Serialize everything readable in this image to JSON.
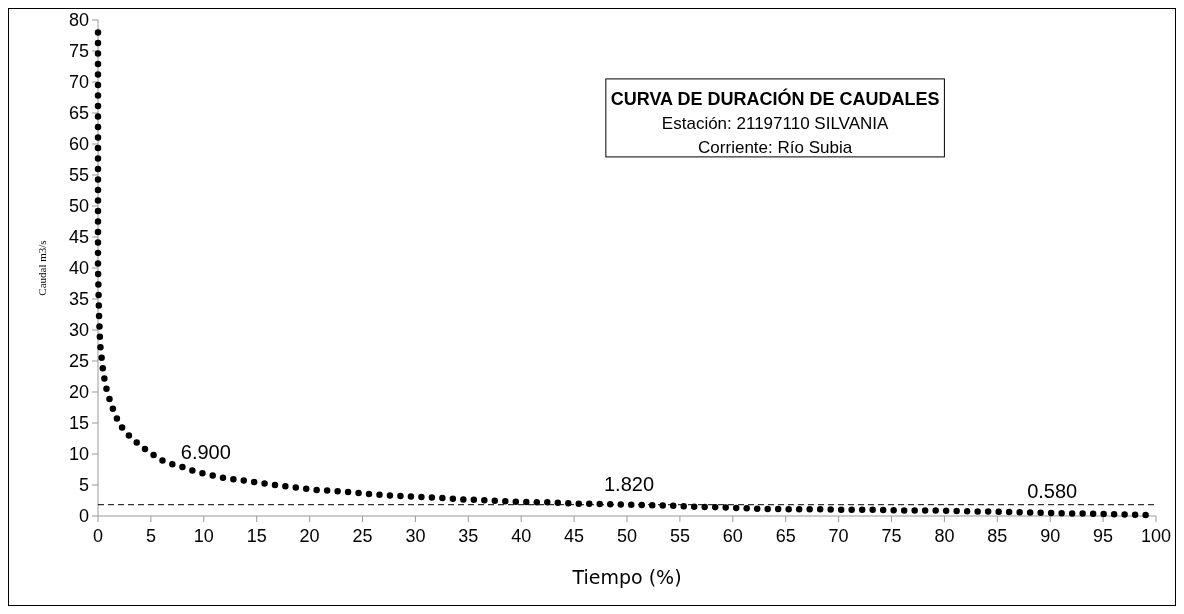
{
  "chart_data": {
    "type": "line",
    "title": "CURVA DE DURACIÓN DE CAUDALES",
    "subtitle": "Estación: 21197110 SILVANIA\nCorriente: Río Subia",
    "xlabel": "Tiempo (%)",
    "ylabel": "Caudal m3/s",
    "xlim": [
      0,
      100
    ],
    "ylim": [
      0,
      80
    ],
    "xticks": [
      0,
      5,
      10,
      15,
      20,
      25,
      30,
      35,
      40,
      45,
      50,
      55,
      60,
      65,
      70,
      75,
      80,
      85,
      90,
      95,
      100
    ],
    "yticks": [
      0,
      5,
      10,
      15,
      20,
      25,
      30,
      35,
      40,
      45,
      50,
      55,
      60,
      65,
      70,
      75,
      80
    ],
    "grid": false,
    "line_style": "dotted",
    "series": [
      {
        "color": "#000000",
        "x": [
          0,
          0,
          0,
          0,
          0,
          0,
          0,
          0,
          0,
          0.1,
          0.2,
          0.35,
          0.5,
          0.75,
          1.1,
          1.5,
          2.0,
          2.6,
          3.4,
          4.2,
          5.1,
          6.0,
          7.1,
          8.2,
          9.3,
          10.4,
          11.7,
          13.0,
          14.2,
          15.5,
          18.1,
          20.7,
          23.4,
          26.0,
          28.7,
          31.5,
          34.2,
          37.0,
          39.7,
          42.5,
          45.3,
          48.1,
          50.9,
          53.6,
          56.3,
          59.0,
          61.8,
          64.7,
          67.5,
          70.3,
          73.1,
          76.0,
          78.7,
          81.5,
          84.3,
          87.2,
          90.0,
          92.7,
          95.5,
          98.4,
          99.7
        ],
        "values": [
          78,
          75,
          70,
          65,
          60,
          55,
          50,
          45,
          40,
          32.4,
          27.7,
          25.4,
          23.1,
          20.8,
          18.8,
          16.8,
          14.9,
          13.5,
          12.2,
          11.1,
          10.0,
          9.0,
          8.3,
          7.8,
          7.1,
          6.7,
          6.2,
          5.9,
          5.6,
          5.3,
          4.7,
          4.2,
          3.9,
          3.5,
          3.2,
          3.0,
          2.7,
          2.5,
          2.3,
          2.2,
          2.0,
          1.9,
          1.8,
          1.7,
          1.5,
          1.4,
          1.2,
          1.1,
          1.1,
          1.0,
          1.0,
          0.9,
          0.9,
          0.8,
          0.7,
          0.6,
          0.5,
          0.4,
          0.3,
          0.2,
          0.1
        ]
      }
    ],
    "ref_lines": [
      {
        "axis": "y",
        "value": 1.82,
        "line_style": "dashed",
        "color": "#000000"
      }
    ],
    "annotations": [
      {
        "text": "6.900",
        "x": 10,
        "y": 6.9
      },
      {
        "text": "1.820",
        "x": 50,
        "y": 1.82
      },
      {
        "text": "0.580",
        "x": 90,
        "y": 0.58
      }
    ]
  }
}
